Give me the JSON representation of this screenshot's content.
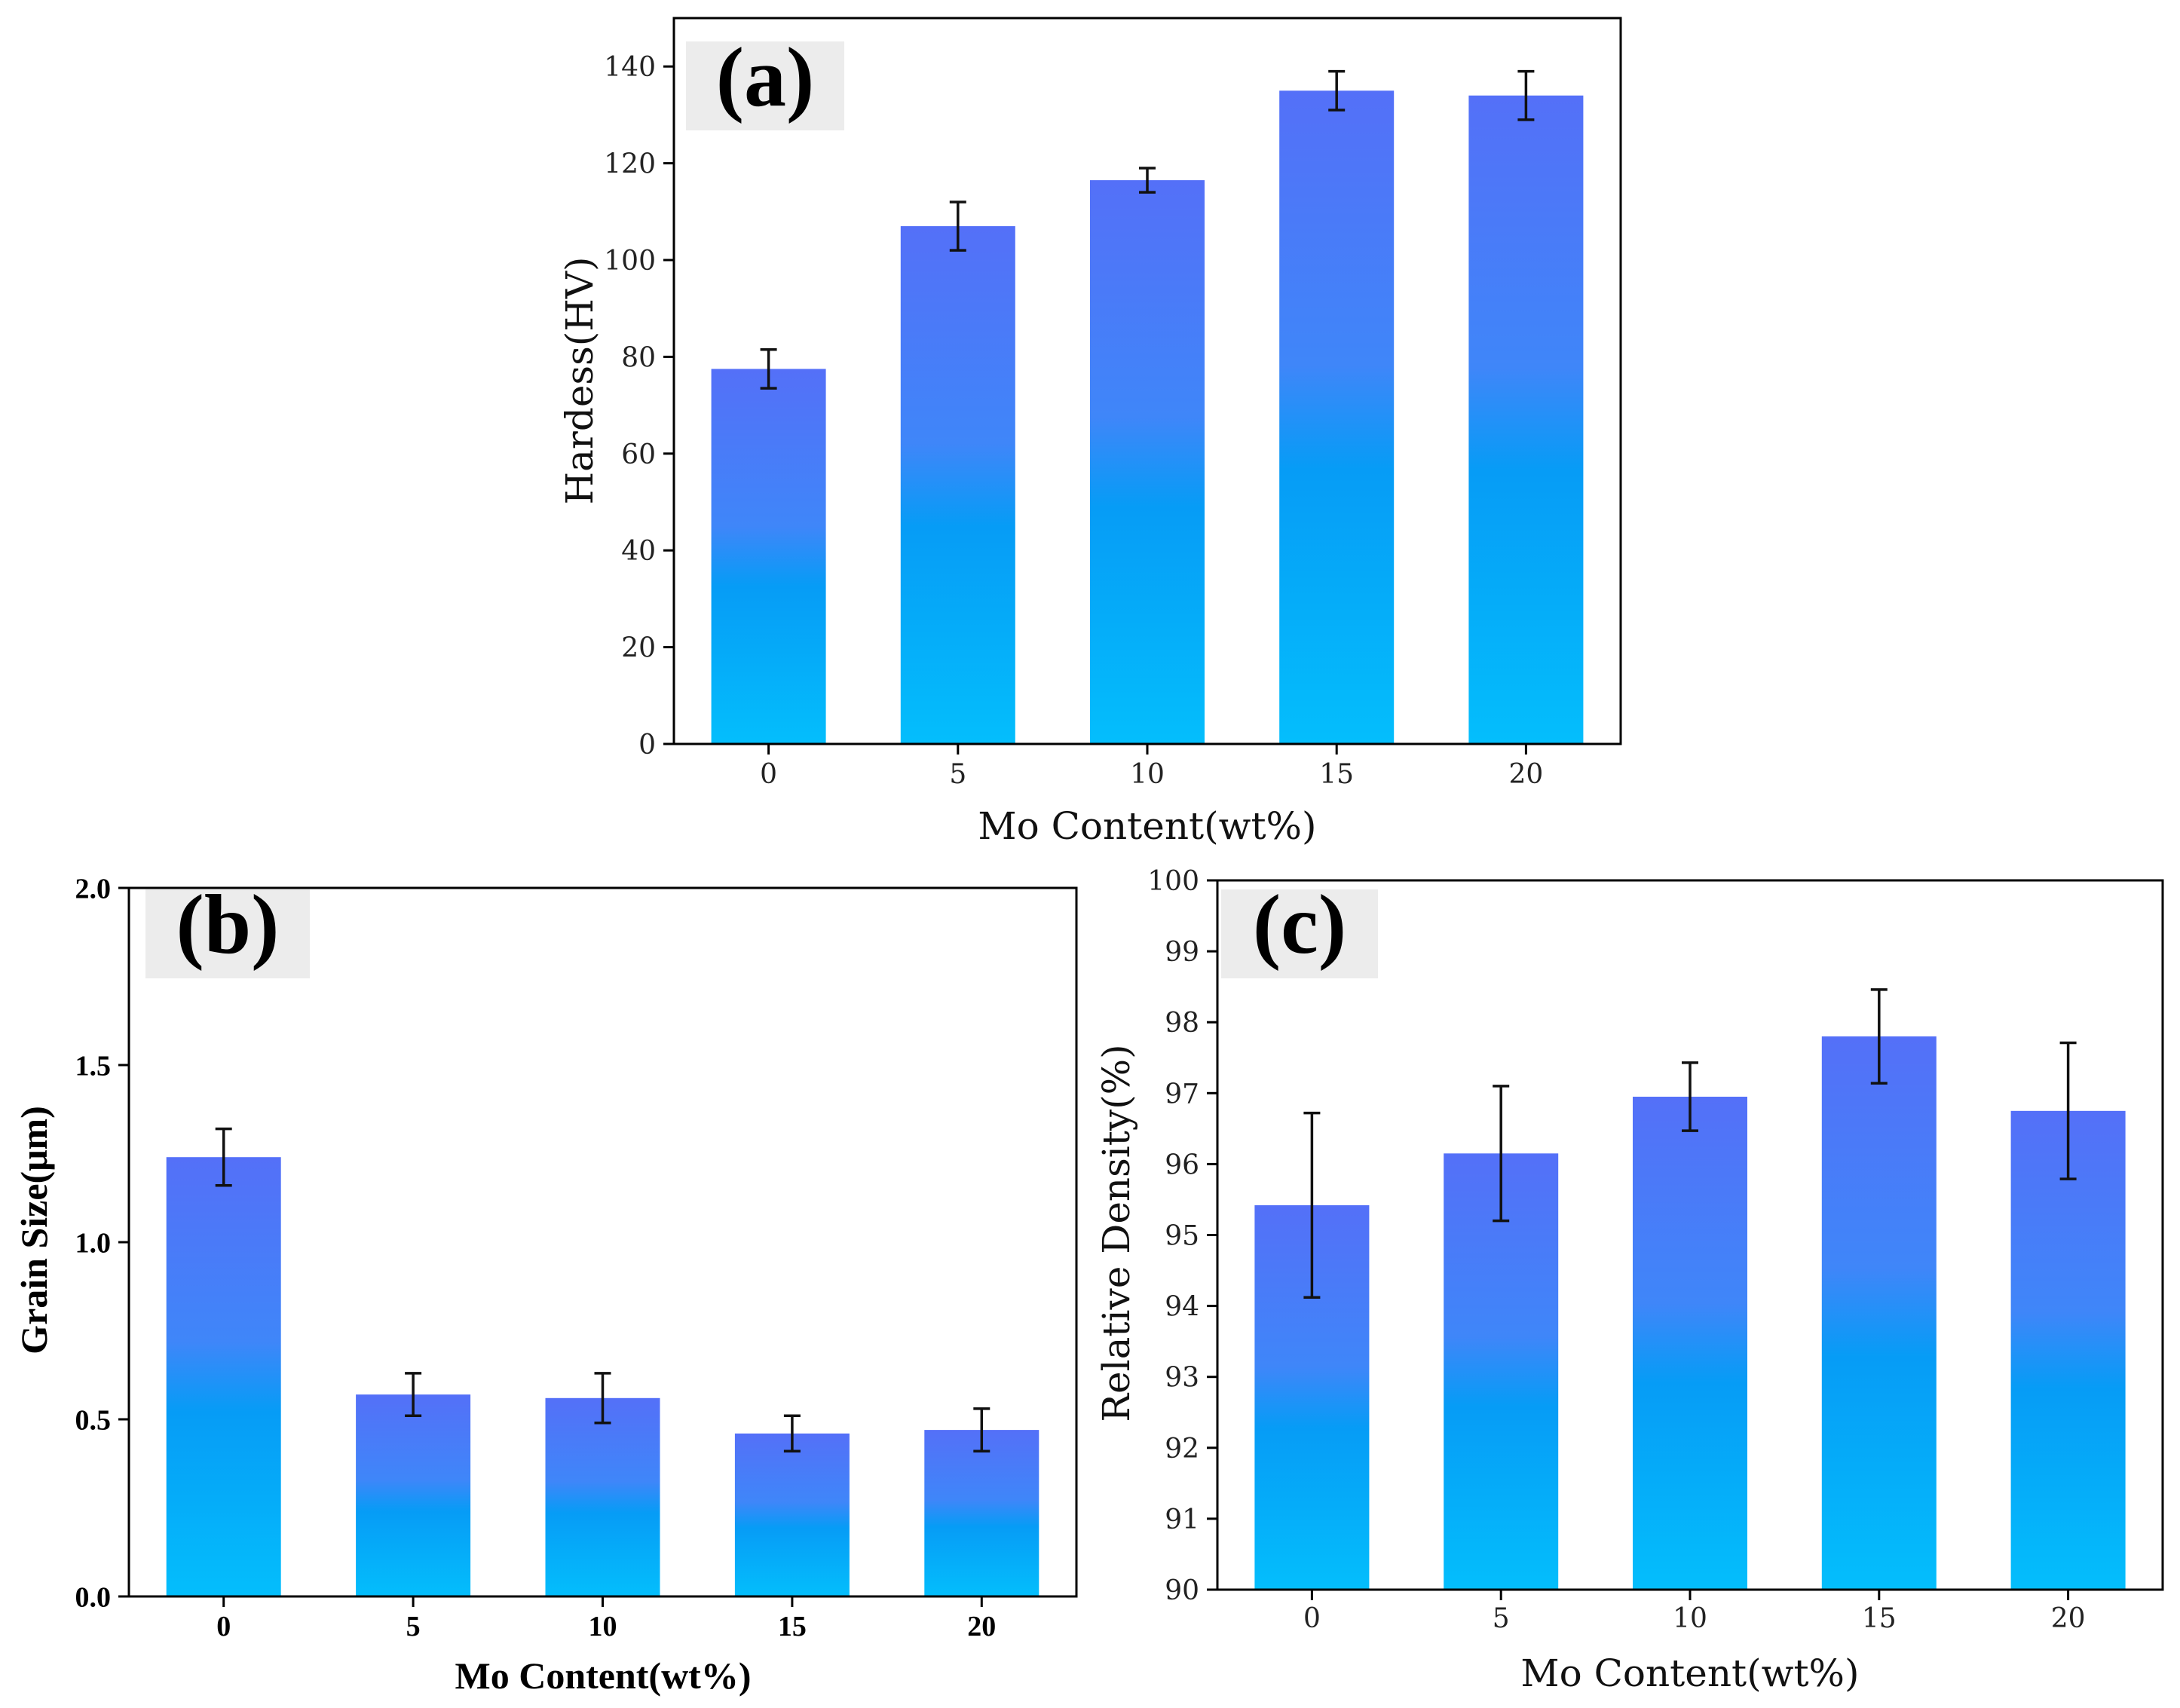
{
  "colors": {
    "bar_top": "#5470f8",
    "bar_mid": "#069cf6",
    "bar_bottom": "#04befc",
    "label_bg": "#ececec",
    "axis": "#000000"
  },
  "chart_data": [
    {
      "id": "a",
      "type": "bar",
      "panel_label": "(a)",
      "categories": [
        "0",
        "5",
        "10",
        "15",
        "20"
      ],
      "values": [
        77.5,
        107,
        116.5,
        135,
        134
      ],
      "errors": [
        4,
        5,
        2.5,
        4,
        5
      ],
      "xlabel": "Mo Content(wt%)",
      "ylabel": "Hardess(HV)",
      "ylim": [
        0,
        150
      ],
      "yticks": [
        "0",
        "20",
        "40",
        "60",
        "80",
        "100",
        "120",
        "140"
      ],
      "ytick_values": [
        0,
        20,
        40,
        60,
        80,
        100,
        120,
        140
      ]
    },
    {
      "id": "b",
      "type": "bar",
      "panel_label": "(b)",
      "categories": [
        "0",
        "5",
        "10",
        "15",
        "20"
      ],
      "values": [
        1.24,
        0.57,
        0.56,
        0.46,
        0.47
      ],
      "errors": [
        0.08,
        0.06,
        0.07,
        0.05,
        0.06
      ],
      "xlabel": "Mo Content(wt%)",
      "ylabel": "Grain Size(μm)",
      "ylim": [
        0,
        2.0
      ],
      "yticks": [
        "0.0",
        "0.5",
        "1.0",
        "1.5",
        "2.0"
      ],
      "ytick_values": [
        0,
        0.5,
        1.0,
        1.5,
        2.0
      ]
    },
    {
      "id": "c",
      "type": "bar",
      "panel_label": "(c)",
      "categories": [
        "0",
        "5",
        "10",
        "15",
        "20"
      ],
      "values": [
        95.42,
        96.15,
        96.95,
        97.8,
        96.75
      ],
      "errors": [
        1.3,
        0.95,
        0.48,
        0.66,
        0.96
      ],
      "xlabel": "Mo Content(wt%)",
      "ylabel": "Relative Density(%)",
      "ylim": [
        90,
        100
      ],
      "yticks": [
        "90",
        "91",
        "92",
        "93",
        "94",
        "95",
        "96",
        "97",
        "98",
        "99",
        "100"
      ],
      "ytick_values": [
        90,
        91,
        92,
        93,
        94,
        95,
        96,
        97,
        98,
        99,
        100
      ]
    }
  ]
}
